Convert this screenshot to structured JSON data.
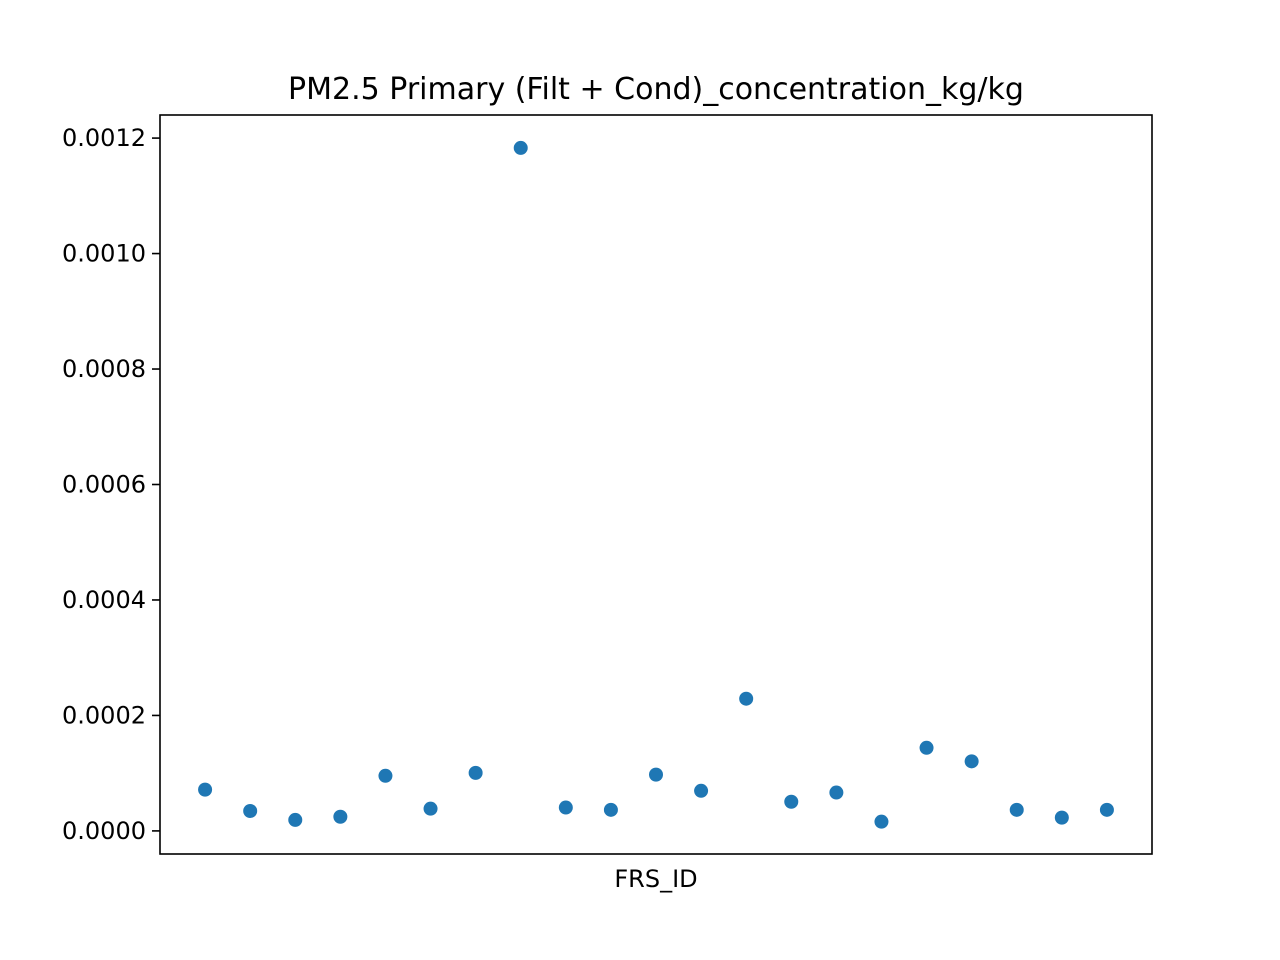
{
  "chart_data": {
    "type": "scatter",
    "title": "PM2.5 Primary (Filt + Cond)_concentration_kg/kg",
    "xlabel": "FRS_ID",
    "ylabel": "",
    "ylim": [
      -4e-05,
      0.00124
    ],
    "yticks": [
      0.0,
      0.0002,
      0.0004,
      0.0006,
      0.0008,
      0.001,
      0.0012
    ],
    "ytick_labels": [
      "0.0000",
      "0.0002",
      "0.0004",
      "0.0006",
      "0.0008",
      "0.0010",
      "0.0012"
    ],
    "grid": false,
    "point_color": "#1f77b4",
    "series": [
      {
        "values": [
          7.15e-05,
          3.45e-05,
          1.9e-05,
          2.45e-05,
          9.55e-05,
          3.85e-05,
          0.0001005,
          0.001183,
          4.05e-05,
          3.65e-05,
          9.75e-05,
          6.95e-05,
          0.000229,
          5.05e-05,
          6.65e-05,
          1.6e-05,
          0.000144,
          0.0001205,
          3.65e-05,
          2.3e-05,
          3.65e-05
        ]
      }
    ]
  }
}
